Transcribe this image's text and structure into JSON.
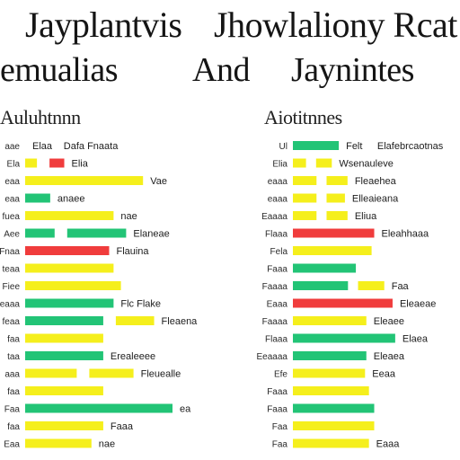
{
  "header": {
    "line1_left": "Jayplantvis",
    "line1_right": "Jhowlaliony Rcat",
    "line2_left": "emualias",
    "line2_mid": "And",
    "line2_right": "Jaynintes"
  },
  "panels": [
    {
      "title": "Auluhtnnn",
      "col_headers": [
        "Elaa",
        "Dafa Fnaata"
      ]
    },
    {
      "title": "Aiotitnnes",
      "col_headers": [
        "Ul",
        "Felt",
        "Elafebrcaotnas"
      ]
    }
  ],
  "colors": {
    "green": "#22c476",
    "yellow": "#f5ef1c",
    "red": "#f03c3c"
  },
  "chart_data": [
    {
      "type": "bar",
      "orientation": "horizontal",
      "title": "Auluhtnnn",
      "xlim": [
        0,
        100
      ],
      "rows": [
        {
          "label": "aae",
          "bars": [],
          "annotations": [
            "Elaa",
            "Dafa Fnaata"
          ]
        },
        {
          "label": "Ela",
          "bars": [
            {
              "color": "yellow",
              "value": 8
            },
            {
              "color": "red",
              "value": 10
            }
          ],
          "annotations": [
            "Elia"
          ]
        },
        {
          "label": "eaa",
          "bars": [
            {
              "color": "yellow",
              "value": 80
            }
          ],
          "annotations": [
            "Vae"
          ]
        },
        {
          "label": "eaa",
          "bars": [
            {
              "color": "green",
              "value": 17
            }
          ],
          "annotations": [
            "anaee"
          ]
        },
        {
          "label": "fuea",
          "bars": [
            {
              "color": "yellow",
              "value": 60
            }
          ],
          "annotations": [
            "nae"
          ]
        },
        {
          "label": "Aee",
          "bars": [
            {
              "color": "green",
              "value": 20
            },
            {
              "color": "green",
              "value": 40
            }
          ],
          "annotations": [
            "Elaneae"
          ]
        },
        {
          "label": "Fnaa",
          "bars": [
            {
              "color": "red",
              "value": 57
            }
          ],
          "annotations": [
            "Flauina"
          ]
        },
        {
          "label": "teaa",
          "bars": [
            {
              "color": "yellow",
              "value": 60
            }
          ],
          "annotations": []
        },
        {
          "label": "Fiee",
          "bars": [
            {
              "color": "yellow",
              "value": 65
            }
          ],
          "annotations": []
        },
        {
          "label": "eaaa",
          "bars": [
            {
              "color": "green",
              "value": 60
            }
          ],
          "annotations": [
            "Flc Flake"
          ]
        },
        {
          "label": "feaa",
          "bars": [
            {
              "color": "green",
              "value": 53
            },
            {
              "color": "yellow",
              "value": 26
            }
          ],
          "annotations": [
            "Fleaena"
          ]
        },
        {
          "label": "faa",
          "bars": [
            {
              "color": "yellow",
              "value": 53
            }
          ],
          "annotations": []
        },
        {
          "label": "taa",
          "bars": [
            {
              "color": "green",
              "value": 53
            }
          ],
          "annotations": [
            "Erealeeee"
          ]
        },
        {
          "label": "aaa",
          "bars": [
            {
              "color": "yellow",
              "value": 35
            },
            {
              "color": "yellow",
              "value": 30
            }
          ],
          "annotations": [
            "Fleuealle"
          ]
        },
        {
          "label": "faa",
          "bars": [
            {
              "color": "yellow",
              "value": 53
            }
          ],
          "annotations": []
        },
        {
          "label": "Faa",
          "bars": [
            {
              "color": "green",
              "value": 100
            }
          ],
          "annotations": [
            "ea"
          ]
        },
        {
          "label": "faa",
          "bars": [
            {
              "color": "yellow",
              "value": 53
            }
          ],
          "annotations": [
            "Faaa"
          ]
        },
        {
          "label": "Eaa",
          "bars": [
            {
              "color": "yellow",
              "value": 45
            }
          ],
          "annotations": [
            "nae"
          ]
        }
      ]
    },
    {
      "type": "bar",
      "orientation": "horizontal",
      "title": "Aiotitnnes",
      "xlim": [
        0,
        100
      ],
      "rows": [
        {
          "label": "Ul",
          "bars": [
            {
              "color": "green",
              "value": 35
            }
          ],
          "annotations": [
            "Felt",
            "Elafebrcaotnas"
          ]
        },
        {
          "label": "Elia",
          "bars": [
            {
              "color": "yellow",
              "value": 10
            },
            {
              "color": "yellow",
              "value": 12
            }
          ],
          "annotations": [
            "Wsenauleve"
          ]
        },
        {
          "label": "eaaa",
          "bars": [
            {
              "color": "yellow",
              "value": 18
            },
            {
              "color": "yellow",
              "value": 16
            }
          ],
          "annotations": [
            "Fleaehea"
          ]
        },
        {
          "label": "eaaa",
          "bars": [
            {
              "color": "yellow",
              "value": 18
            },
            {
              "color": "yellow",
              "value": 14
            }
          ],
          "annotations": [
            "Elleaieana"
          ]
        },
        {
          "label": "Eaaaa",
          "bars": [
            {
              "color": "yellow",
              "value": 18
            },
            {
              "color": "yellow",
              "value": 16
            }
          ],
          "annotations": [
            "Eliua"
          ]
        },
        {
          "label": "Flaaa",
          "bars": [
            {
              "color": "red",
              "value": 62
            }
          ],
          "annotations": [
            "Eleahhaaa"
          ]
        },
        {
          "label": "Fela",
          "bars": [
            {
              "color": "yellow",
              "value": 60
            }
          ],
          "annotations": []
        },
        {
          "label": "Faaa",
          "bars": [
            {
              "color": "green",
              "value": 48
            }
          ],
          "annotations": []
        },
        {
          "label": "Faaaa",
          "bars": [
            {
              "color": "green",
              "value": 42
            },
            {
              "color": "yellow",
              "value": 20
            }
          ],
          "annotations": [
            "Faa"
          ]
        },
        {
          "label": "Eaaa",
          "bars": [
            {
              "color": "red",
              "value": 76
            }
          ],
          "annotations": [
            "Eleaeae"
          ]
        },
        {
          "label": "Faaaa",
          "bars": [
            {
              "color": "yellow",
              "value": 56
            }
          ],
          "annotations": [
            "Eleaee"
          ]
        },
        {
          "label": "Flaaa",
          "bars": [
            {
              "color": "green",
              "value": 78
            }
          ],
          "annotations": [
            "Elaea"
          ]
        },
        {
          "label": "Eeaaaa",
          "bars": [
            {
              "color": "green",
              "value": 56
            }
          ],
          "annotations": [
            "Eleaea"
          ]
        },
        {
          "label": "Efe",
          "bars": [
            {
              "color": "yellow",
              "value": 55
            }
          ],
          "annotations": [
            "Eeaa"
          ]
        },
        {
          "label": "Faaa",
          "bars": [
            {
              "color": "yellow",
              "value": 58
            }
          ],
          "annotations": []
        },
        {
          "label": "Faaa",
          "bars": [
            {
              "color": "green",
              "value": 62
            }
          ],
          "annotations": []
        },
        {
          "label": "Faa",
          "bars": [
            {
              "color": "yellow",
              "value": 62
            }
          ],
          "annotations": []
        },
        {
          "label": "Faa",
          "bars": [
            {
              "color": "yellow",
              "value": 58
            }
          ],
          "annotations": [
            "Eaaa"
          ]
        }
      ]
    }
  ]
}
